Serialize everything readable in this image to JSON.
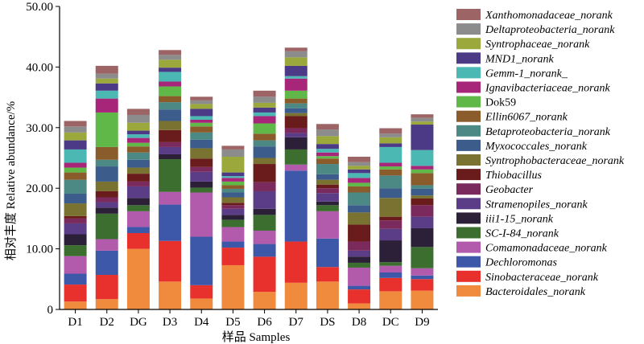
{
  "chart_data": {
    "type": "bar",
    "stacked": true,
    "categories": [
      "D1",
      "D2",
      "DG",
      "D3",
      "D4",
      "D5",
      "D6",
      "D7",
      "DS",
      "D8",
      "DC",
      "D9"
    ],
    "xlabel": "样品 Samples",
    "ylabel": "相对丰度 Relative abundance/%",
    "ylim": [
      0,
      50
    ],
    "yticks": [
      "0",
      "10.00",
      "20.00",
      "30.00",
      "40.00",
      "50.00"
    ],
    "grid": false,
    "legend_position": "right",
    "series": [
      {
        "name": "Bacteroidales_norank",
        "color": "#F08A3C",
        "values": [
          1.3,
          1.7,
          10.0,
          4.6,
          1.8,
          7.3,
          2.9,
          4.4,
          4.6,
          1.0,
          3.0,
          3.1
        ]
      },
      {
        "name": "Sinobacteraceae_norank",
        "color": "#E8312C",
        "values": [
          2.8,
          4.0,
          2.6,
          6.7,
          2.2,
          2.9,
          5.8,
          6.8,
          2.4,
          2.3,
          2.2,
          1.9
        ]
      },
      {
        "name": "Dechloromonas",
        "color": "#3D58A8",
        "values": [
          1.8,
          4.0,
          1.0,
          6.0,
          8.0,
          1.0,
          2.1,
          11.7,
          4.7,
          0.6,
          0.9,
          0.6
        ]
      },
      {
        "name": "Comamonadaceae_norank",
        "color": "#B25AAB",
        "values": [
          2.9,
          1.9,
          2.6,
          2.1,
          7.3,
          2.4,
          2.2,
          1.0,
          4.5,
          3.0,
          1.1,
          1.2
        ]
      },
      {
        "name": "SC-I-84_norank",
        "color": "#3C6E30",
        "values": [
          1.8,
          4.2,
          1.0,
          5.4,
          0.8,
          1.2,
          2.6,
          2.5,
          1.0,
          0.8,
          0.6,
          3.5
        ]
      },
      {
        "name": "iii1-15_norank",
        "color": "#2C2038",
        "values": [
          1.8,
          1.0,
          1.2,
          0.8,
          1.0,
          0.8,
          1.0,
          2.0,
          0.6,
          1.0,
          3.6,
          3.1
        ]
      },
      {
        "name": "Stramenopiles_norank",
        "color": "#5A3D86",
        "values": [
          1.8,
          0.9,
          1.9,
          1.2,
          1.6,
          1.0,
          2.9,
          0.7,
          1.4,
          1.0,
          1.9,
          1.9
        ]
      },
      {
        "name": "Geobacter",
        "color": "#7A2A5C",
        "values": [
          0.8,
          0.8,
          0.8,
          0.8,
          0.8,
          0.6,
          1.5,
          0.8,
          0.8,
          1.5,
          1.4,
          1.9
        ]
      },
      {
        "name": "Thiobacillus",
        "color": "#6A1C1C",
        "values": [
          0.4,
          1.0,
          1.3,
          2.0,
          1.4,
          0.4,
          3.0,
          2.0,
          0.6,
          2.8,
          0.6,
          1.1
        ]
      },
      {
        "name": "Syntrophobacteraceae_norank",
        "color": "#7A7230",
        "values": [
          2.1,
          1.6,
          1.0,
          1.5,
          1.7,
          0.9,
          1.0,
          0.5,
          0.8,
          2.0,
          3.1,
          0.5
        ]
      },
      {
        "name": "Myxococcales_norank",
        "color": "#3C5C8C",
        "values": [
          1.6,
          2.5,
          1.3,
          1.9,
          1.4,
          0.8,
          1.9,
          0.8,
          0.9,
          1.2,
          1.6,
          1.1
        ]
      },
      {
        "name": "Betaproteobacteria_norank",
        "color": "#4C8884",
        "values": [
          2.3,
          1.1,
          1.2,
          1.2,
          1.2,
          0.6,
          1.0,
          0.8,
          1.7,
          2.1,
          2.1,
          0.6
        ]
      },
      {
        "name": "Ellin6067_norank",
        "color": "#8A5C2C",
        "values": [
          1.2,
          2.1,
          1.0,
          1.0,
          1.0,
          0.6,
          1.1,
          0.8,
          0.9,
          1.0,
          1.0,
          2.0
        ]
      },
      {
        "name": "Dok59",
        "color": "#5FB848",
        "values": [
          0.8,
          5.7,
          0.6,
          1.6,
          0.6,
          0.6,
          1.7,
          1.3,
          0.4,
          0.6,
          0.5,
          0.6
        ]
      },
      {
        "name": "Ignavibacteriaceae_norank",
        "color": "#A8267A",
        "values": [
          0.8,
          2.3,
          0.8,
          0.8,
          0.5,
          0.6,
          1.2,
          2.0,
          0.6,
          0.8,
          0.6,
          0.6
        ]
      },
      {
        "name": "Gemm-1_norank_",
        "color": "#4CB8B4",
        "values": [
          2.2,
          1.3,
          0.6,
          1.6,
          0.6,
          0.3,
          0.6,
          0.4,
          0.6,
          0.8,
          2.6,
          2.6
        ]
      },
      {
        "name": "MND1_norank",
        "color": "#4C3A86",
        "values": [
          1.5,
          1.2,
          0.6,
          0.7,
          1.2,
          0.6,
          0.8,
          1.7,
          0.8,
          0.6,
          0.6,
          4.2
        ]
      },
      {
        "name": "Syntrophaceae_norank",
        "color": "#9AA83C",
        "values": [
          1.3,
          0.8,
          1.3,
          1.3,
          0.8,
          2.6,
          0.8,
          1.4,
          1.3,
          0.6,
          1.0,
          0.5
        ]
      },
      {
        "name": "Deltaproteobacteria_norank",
        "color": "#8C8C8C",
        "values": [
          1.0,
          0.8,
          1.3,
          0.8,
          0.6,
          1.2,
          1.0,
          1.0,
          1.1,
          0.6,
          0.6,
          0.6
        ]
      },
      {
        "name": "Xanthomonadaceae_norank",
        "color": "#9C6464",
        "values": [
          0.9,
          1.3,
          1.0,
          0.8,
          0.6,
          0.6,
          1.0,
          0.6,
          0.9,
          0.9,
          0.9,
          0.6
        ]
      }
    ]
  }
}
